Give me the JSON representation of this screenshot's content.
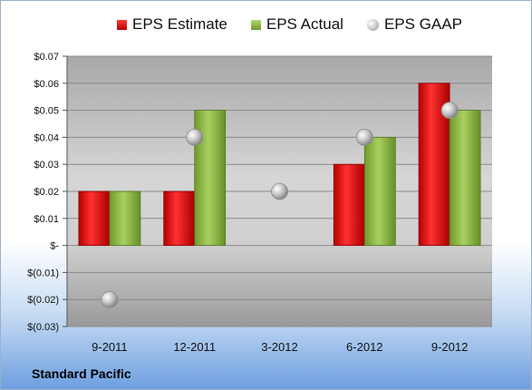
{
  "company": "Standard Pacific",
  "colors": {
    "estimate": "#d91a1a",
    "actual": "#8cbb3f",
    "gaap": "#b5b5b5"
  },
  "chart_data": {
    "type": "bar",
    "categories": [
      "9-2011",
      "12-2011",
      "3-2012",
      "6-2012",
      "9-2012"
    ],
    "series": [
      {
        "name": "EPS Estimate",
        "kind": "bar",
        "values": [
          0.02,
          0.02,
          null,
          0.03,
          0.06
        ]
      },
      {
        "name": "EPS Actual",
        "kind": "bar",
        "values": [
          0.02,
          0.05,
          null,
          0.04,
          0.05
        ]
      },
      {
        "name": "EPS GAAP",
        "kind": "marker",
        "values": [
          -0.02,
          0.04,
          0.02,
          0.04,
          0.05
        ]
      }
    ],
    "ylim": [
      -0.03,
      0.07
    ],
    "yticks": [
      0.07,
      0.06,
      0.05,
      0.04,
      0.03,
      0.02,
      0.01,
      0,
      -0.01,
      -0.02,
      -0.03
    ],
    "ytick_labels": [
      "$0.07",
      "$0.06",
      "$0.05",
      "$0.04",
      "$0.03",
      "$0.02",
      "$0.01",
      "$-",
      "$(0.01)",
      "$(0.02)",
      "$(0.03)"
    ],
    "legend_position": "top",
    "grid": true
  }
}
